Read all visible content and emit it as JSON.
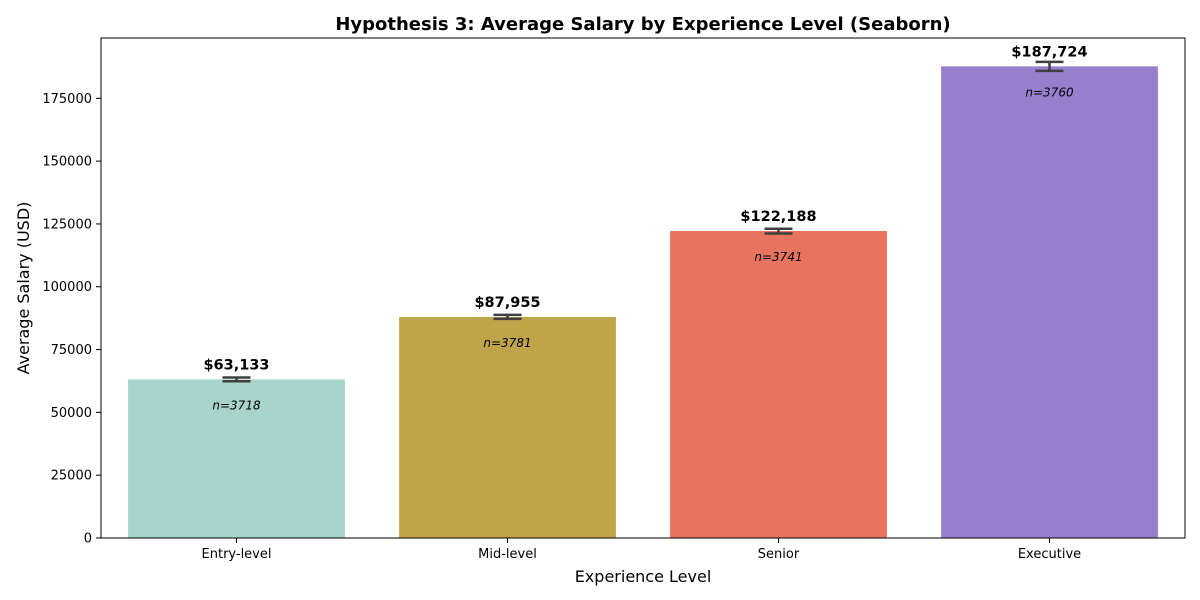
{
  "chart_data": {
    "type": "bar",
    "title": "Hypothesis 3: Average Salary by Experience Level (Seaborn)",
    "xlabel": "Experience Level",
    "ylabel": "Average Salary (USD)",
    "categories": [
      "Entry-level",
      "Mid-level",
      "Senior",
      "Executive"
    ],
    "values": [
      63133,
      87955,
      122188,
      187724
    ],
    "value_labels": [
      "$63,133",
      "$87,955",
      "$122,188",
      "$187,724"
    ],
    "error_low": [
      62400,
      87200,
      121200,
      185900
    ],
    "error_high": [
      63900,
      88800,
      123100,
      189500
    ],
    "counts": [
      "n=3718",
      "n=3781",
      "n=3741",
      "n=3760"
    ],
    "colors": [
      "#a8d4cb",
      "#c0a44a",
      "#e8735f",
      "#987fcd"
    ],
    "ylim": [
      0,
      199000
    ],
    "yticks": [
      0,
      25000,
      50000,
      75000,
      100000,
      125000,
      150000,
      175000
    ],
    "ytick_labels": [
      "0",
      "25000",
      "50000",
      "75000",
      "100000",
      "125000",
      "150000",
      "175000"
    ],
    "grid": false,
    "legend": "none"
  }
}
